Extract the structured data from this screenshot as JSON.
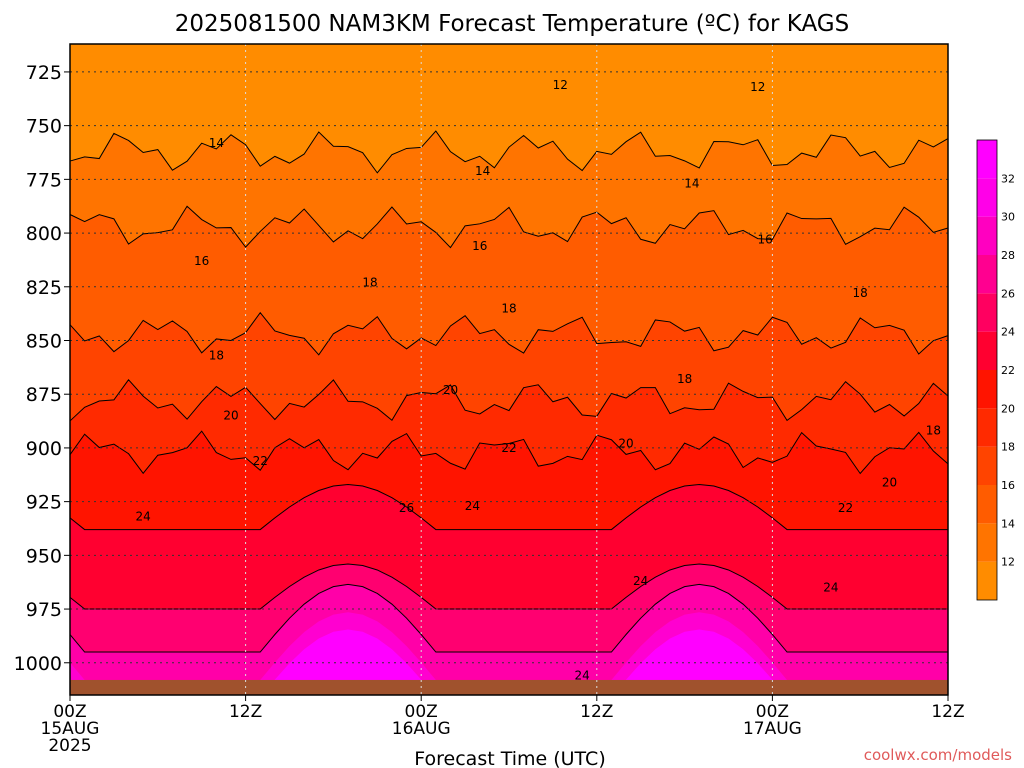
{
  "chart_data": {
    "type": "heatmap",
    "title": "2025081500 NAM3KM Forecast Temperature (ºC) for KAGS",
    "xlabel": "Forecast Time (UTC)",
    "ylabel": "",
    "x_ticks": [
      {
        "hours": 0,
        "lines": [
          "00Z",
          "15AUG",
          "2025"
        ]
      },
      {
        "hours": 12,
        "lines": [
          "12Z"
        ]
      },
      {
        "hours": 24,
        "lines": [
          "00Z",
          "16AUG"
        ]
      },
      {
        "hours": 36,
        "lines": [
          "12Z"
        ]
      },
      {
        "hours": 48,
        "lines": [
          "00Z",
          "17AUG"
        ]
      },
      {
        "hours": 60,
        "lines": [
          "12Z"
        ]
      }
    ],
    "xlim": [
      0,
      60
    ],
    "y_ticks": [
      725,
      750,
      775,
      800,
      825,
      850,
      875,
      900,
      925,
      950,
      975,
      1000
    ],
    "ylim": [
      1015,
      712
    ],
    "y_axis_reversed": true,
    "colorbar_ticks": [
      12,
      14,
      16,
      18,
      20,
      22,
      24,
      26,
      28,
      30,
      32
    ],
    "colorbar_colors": [
      "#ff8c00",
      "#ff7400",
      "#ff5c00",
      "#ff4400",
      "#ff2a00",
      "#ff1400",
      "#ff0030",
      "#ff0060",
      "#ff0090",
      "#ff00c0",
      "#ff00e8",
      "#ff00ff"
    ],
    "grid": true,
    "contour_labels": [
      {
        "t": 33.5,
        "p": 731,
        "v": "12"
      },
      {
        "t": 47.0,
        "p": 732,
        "v": "12"
      },
      {
        "t": 10.0,
        "p": 758,
        "v": "14"
      },
      {
        "t": 28.2,
        "p": 771,
        "v": "14"
      },
      {
        "t": 42.5,
        "p": 777,
        "v": "14"
      },
      {
        "t": 9.0,
        "p": 813,
        "v": "16"
      },
      {
        "t": 28.0,
        "p": 806,
        "v": "16"
      },
      {
        "t": 47.5,
        "p": 803,
        "v": "16"
      },
      {
        "t": 20.5,
        "p": 823,
        "v": "18"
      },
      {
        "t": 30.0,
        "p": 835,
        "v": "18"
      },
      {
        "t": 54.0,
        "p": 828,
        "v": "18"
      },
      {
        "t": 10.0,
        "p": 857,
        "v": "18"
      },
      {
        "t": 42.0,
        "p": 868,
        "v": "18"
      },
      {
        "t": 59.0,
        "p": 892,
        "v": "18"
      },
      {
        "t": 11.0,
        "p": 885,
        "v": "20"
      },
      {
        "t": 26.0,
        "p": 873,
        "v": "20"
      },
      {
        "t": 38.0,
        "p": 898,
        "v": "20"
      },
      {
        "t": 56.0,
        "p": 916,
        "v": "20"
      },
      {
        "t": 13.0,
        "p": 906,
        "v": "22"
      },
      {
        "t": 30.0,
        "p": 900,
        "v": "22"
      },
      {
        "t": 53.0,
        "p": 928,
        "v": "22"
      },
      {
        "t": 5.0,
        "p": 932,
        "v": "24"
      },
      {
        "t": 27.5,
        "p": 927,
        "v": "24"
      },
      {
        "t": 39.0,
        "p": 962,
        "v": "24"
      },
      {
        "t": 52.0,
        "p": 965,
        "v": "24"
      },
      {
        "t": 35.0,
        "p": 1006,
        "v": "24"
      },
      {
        "t": 23.0,
        "p": 928,
        "v": "26"
      }
    ],
    "bands": [
      {
        "v": 12,
        "color": "#ff8c00"
      },
      {
        "v": 14,
        "color": "#ff7400"
      },
      {
        "v": 16,
        "color": "#ff5c00"
      },
      {
        "v": 18,
        "color": "#ff4400"
      },
      {
        "v": 20,
        "color": "#ff2a00"
      },
      {
        "v": 22,
        "color": "#ff1400"
      },
      {
        "v": 24,
        "color": "#ff0030"
      },
      {
        "v": 26,
        "color": "#ff0070"
      },
      {
        "v": 28,
        "color": "#ff00a8"
      },
      {
        "v": 30,
        "color": "#ff00d0"
      },
      {
        "v": 32,
        "color": "#ff00ff"
      }
    ],
    "ground_color": "#a0522d"
  },
  "credit": "coolwx.com/models"
}
